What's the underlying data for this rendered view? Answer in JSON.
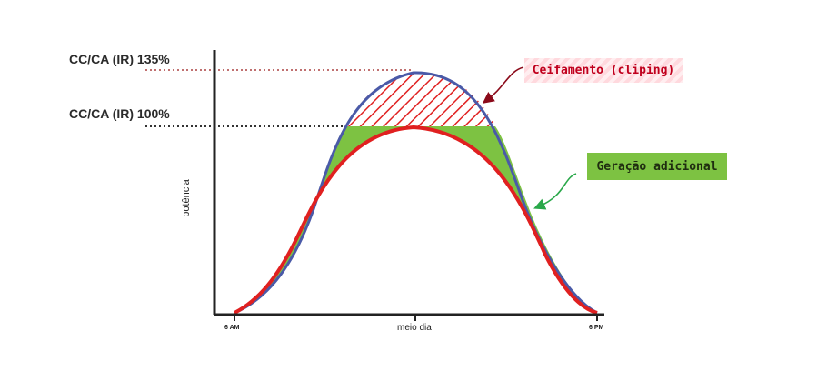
{
  "labels": {
    "ratio_135": "CC/CA (IR) 135%",
    "ratio_100": "CC/CA (IR) 100%",
    "clipping": "Ceifamento (cliping)",
    "additional_generation": "Geração adicional",
    "y_axis": "potência"
  },
  "x_ticks": [
    "6 AM",
    "meio dia",
    "6 PM"
  ],
  "colors": {
    "dc_curve": "#4a5aa8",
    "ac_curve": "#e02020",
    "additional_fill": "#7dc242",
    "clipping_hatch": "#e02020",
    "clip_label_text": "#c0001d",
    "clip_arrow": "#8b0a1a",
    "gen_arrow": "#2aa84a",
    "line_135": "#c07070",
    "line_100": "#333333"
  }
}
